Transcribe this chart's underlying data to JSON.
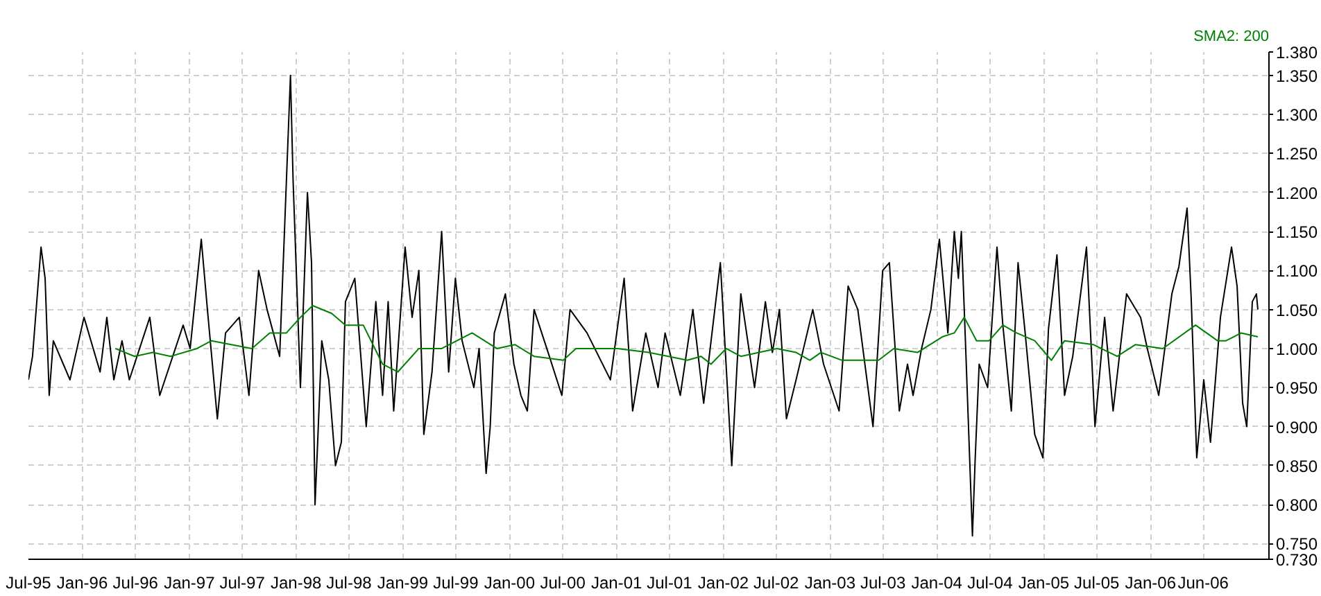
{
  "chart_data": {
    "type": "line",
    "xlim": [
      "1995-07-01",
      "2007-02-10"
    ],
    "xticks": [
      {
        "value": "1995-07-01",
        "label": "Jul-95"
      },
      {
        "value": "1996-01-01",
        "label": "Jan-96"
      },
      {
        "value": "1996-07-01",
        "label": "Jul-96"
      },
      {
        "value": "1997-01-01",
        "label": "Jan-97"
      },
      {
        "value": "1997-07-01",
        "label": "Jul-97"
      },
      {
        "value": "1998-01-01",
        "label": "Jan-98"
      },
      {
        "value": "1998-07-01",
        "label": "Jul-98"
      },
      {
        "value": "1999-01-01",
        "label": "Jan-99"
      },
      {
        "value": "1999-07-01",
        "label": "Jul-99"
      },
      {
        "value": "2000-01-01",
        "label": "Jan-00"
      },
      {
        "value": "2000-07-01",
        "label": "Jul-00"
      },
      {
        "value": "2001-01-01",
        "label": "Jan-01"
      },
      {
        "value": "2001-07-01",
        "label": "Jul-01"
      },
      {
        "value": "2002-01-01",
        "label": "Jan-02"
      },
      {
        "value": "2002-07-01",
        "label": "Jul-02"
      },
      {
        "value": "2003-01-01",
        "label": "Jan-03"
      },
      {
        "value": "2003-07-01",
        "label": "Jul-03"
      },
      {
        "value": "2004-01-01",
        "label": "Jan-04"
      },
      {
        "value": "2004-07-01",
        "label": "Jul-04"
      },
      {
        "value": "2005-01-01",
        "label": "Jan-05"
      },
      {
        "value": "2005-07-01",
        "label": "Jul-05"
      },
      {
        "value": "2006-01-01",
        "label": "Jan-06"
      },
      {
        "value": "2006-06-30",
        "label": "Jun-06"
      }
    ],
    "ylim": [
      0.73,
      1.38
    ],
    "yticks": [
      {
        "value": 0.73,
        "label": "0.730"
      },
      {
        "value": 0.75,
        "label": "0.750"
      },
      {
        "value": 0.8,
        "label": "0.800"
      },
      {
        "value": 0.85,
        "label": "0.850"
      },
      {
        "value": 0.9,
        "label": "0.900"
      },
      {
        "value": 0.95,
        "label": "0.950"
      },
      {
        "value": 1.0,
        "label": "1.000"
      },
      {
        "value": 1.05,
        "label": "1.050"
      },
      {
        "value": 1.1,
        "label": "1.100"
      },
      {
        "value": 1.15,
        "label": "1.150"
      },
      {
        "value": 1.2,
        "label": "1.200"
      },
      {
        "value": 1.25,
        "label": "1.250"
      },
      {
        "value": 1.3,
        "label": "1.300"
      },
      {
        "value": 1.35,
        "label": "1.350"
      },
      {
        "value": 1.38,
        "label": "1.380"
      }
    ],
    "grid": true,
    "line_style": "solid",
    "marker": "none",
    "series": [
      {
        "color": "#000000",
        "x": [
          "1995-07-01",
          "1995-07-15",
          "1995-08-13",
          "1995-08-27",
          "1995-09-10",
          "1995-09-24",
          "1995-11-20",
          "1996-01-07",
          "1996-03-02",
          "1996-03-25",
          "1996-04-18",
          "1996-05-16",
          "1996-06-10",
          "1996-08-19",
          "1996-09-22",
          "1996-12-11",
          "1997-01-04",
          "1997-02-11",
          "1997-03-04",
          "1997-04-07",
          "1997-05-05",
          "1997-06-21",
          "1997-07-24",
          "1997-08-26",
          "1997-09-24",
          "1997-11-06",
          "1997-12-13",
          "1997-12-22",
          "1998-01-16",
          "1998-02-09",
          "1998-02-23",
          "1998-03-07",
          "1998-03-16",
          "1998-03-30",
          "1998-04-23",
          "1998-05-16",
          "1998-06-05",
          "1998-06-19",
          "1998-07-21",
          "1998-08-29",
          "1998-10-01",
          "1998-10-24",
          "1998-11-12",
          "1998-12-01",
          "1999-01-09",
          "1999-02-02",
          "1999-02-25",
          "1999-03-14",
          "1999-04-11",
          "1999-05-14",
          "1999-06-07",
          "1999-06-30",
          "1999-07-23",
          "1999-09-01",
          "1999-09-19",
          "1999-10-13",
          "1999-10-27",
          "1999-11-10",
          "1999-12-18",
          "2000-01-16",
          "2000-02-09",
          "2000-03-02",
          "2000-03-25",
          "2000-05-12",
          "2000-06-28",
          "2000-07-26",
          "2000-09-22",
          "2000-12-11",
          "2001-01-27",
          "2001-02-25",
          "2001-04-11",
          "2001-05-23",
          "2001-06-16",
          "2001-08-07",
          "2001-09-19",
          "2001-10-26",
          "2001-12-22",
          "2002-01-30",
          "2002-03-02",
          "2002-04-18",
          "2002-05-25",
          "2002-06-18",
          "2002-07-12",
          "2002-08-05",
          "2002-09-07",
          "2002-11-03",
          "2002-12-10",
          "2003-02-01",
          "2003-03-04",
          "2003-04-06",
          "2003-05-28",
          "2003-06-30",
          "2003-07-23",
          "2003-08-26",
          "2003-09-23",
          "2003-10-12",
          "2003-11-10",
          "2003-12-12",
          "2004-01-10",
          "2004-02-08",
          "2004-03-01",
          "2004-03-15",
          "2004-03-25",
          "2004-04-08",
          "2004-05-02",
          "2004-05-11",
          "2004-05-25",
          "2004-06-23",
          "2004-07-25",
          "2004-08-14",
          "2004-09-12",
          "2004-10-05",
          "2004-10-28",
          "2004-12-01",
          "2004-12-29",
          "2005-01-17",
          "2005-02-15",
          "2005-03-13",
          "2005-04-10",
          "2005-05-27",
          "2005-06-25",
          "2005-07-28",
          "2005-08-26",
          "2005-10-11",
          "2005-11-28",
          "2005-12-21",
          "2006-01-29",
          "2006-03-15",
          "2006-04-08",
          "2006-05-06",
          "2006-05-20",
          "2006-06-08",
          "2006-07-02",
          "2006-07-25",
          "2006-08-28",
          "2006-10-05",
          "2006-10-24",
          "2006-11-12",
          "2006-11-26",
          "2006-12-15",
          "2006-12-29",
          "2007-01-03"
        ],
        "values": [
          0.96,
          0.99,
          1.13,
          1.09,
          0.94,
          1.01,
          0.96,
          1.04,
          0.97,
          1.04,
          0.96,
          1.01,
          0.96,
          1.04,
          0.94,
          1.03,
          1.0,
          1.14,
          1.05,
          0.91,
          1.02,
          1.04,
          0.94,
          1.1,
          1.05,
          0.99,
          1.35,
          1.215,
          0.95,
          1.2,
          1.11,
          0.8,
          0.88,
          1.01,
          0.96,
          0.85,
          0.88,
          1.06,
          1.09,
          0.9,
          1.06,
          0.94,
          1.06,
          0.92,
          1.13,
          1.04,
          1.1,
          0.89,
          0.97,
          1.15,
          0.97,
          1.09,
          1.01,
          0.95,
          1.0,
          0.84,
          0.9,
          1.02,
          1.07,
          0.98,
          0.94,
          0.92,
          1.05,
          0.995,
          0.94,
          1.05,
          1.02,
          0.96,
          1.09,
          0.92,
          1.02,
          0.95,
          1.02,
          0.94,
          1.05,
          0.93,
          1.11,
          0.85,
          1.07,
          0.95,
          1.06,
          0.995,
          1.05,
          0.91,
          0.96,
          1.05,
          0.98,
          0.92,
          1.08,
          1.05,
          0.9,
          1.1,
          1.11,
          0.92,
          0.98,
          0.94,
          1.0,
          1.05,
          1.14,
          1.02,
          1.15,
          1.09,
          1.15,
          1.01,
          0.76,
          0.855,
          0.98,
          0.95,
          1.13,
          1.03,
          0.92,
          1.11,
          1.025,
          0.89,
          0.86,
          1.025,
          1.12,
          0.94,
          0.99,
          1.13,
          0.9,
          1.04,
          0.92,
          1.07,
          1.04,
          1.0,
          0.94,
          1.07,
          1.105,
          1.18,
          1.065,
          0.86,
          0.96,
          0.88,
          1.04,
          1.13,
          1.08,
          0.93,
          0.9,
          1.06,
          1.07,
          1.05
        ]
      },
      {
        "name": "SMA2: 200",
        "color": "#008000",
        "x": [
          "1996-04-23",
          "1996-06-28",
          "1996-08-29",
          "1996-10-29",
          "1997-01-27",
          "1997-03-18",
          "1997-08-03",
          "1997-10-03",
          "1997-11-29",
          "1998-01-16",
          "1998-02-27",
          "1998-05-03",
          "1998-06-19",
          "1998-08-19",
          "1998-10-24",
          "1998-12-15",
          "1999-02-25",
          "1999-05-14",
          "1999-08-26",
          "1999-11-19",
          "2000-01-20",
          "2000-03-25",
          "2000-07-03",
          "2000-08-15",
          "2001-01-04",
          "2001-04-21",
          "2001-08-31",
          "2001-10-17",
          "2001-11-20",
          "2002-01-11",
          "2002-03-02",
          "2002-07-03",
          "2002-09-07",
          "2002-10-24",
          "2002-12-01",
          "2003-02-11",
          "2003-06-16",
          "2003-08-07",
          "2003-10-27",
          "2004-01-20",
          "2004-03-01",
          "2004-04-04",
          "2004-05-16",
          "2004-06-28",
          "2004-08-14",
          "2004-09-30",
          "2004-12-01",
          "2005-01-27",
          "2005-03-13",
          "2005-06-20",
          "2005-09-09",
          "2005-11-10",
          "2006-02-12",
          "2006-06-04",
          "2006-08-18",
          "2006-09-16",
          "2006-11-07",
          "2007-01-03"
        ],
        "values": [
          1.0,
          0.99,
          0.995,
          0.99,
          1.0,
          1.01,
          1.0,
          1.02,
          1.02,
          1.04,
          1.055,
          1.045,
          1.03,
          1.03,
          0.98,
          0.97,
          1.0,
          1.0,
          1.02,
          1.0,
          1.005,
          0.99,
          0.985,
          1.0,
          1.0,
          0.995,
          0.985,
          0.99,
          0.98,
          1.0,
          0.99,
          1.0,
          0.995,
          0.985,
          0.995,
          0.985,
          0.985,
          1.0,
          0.995,
          1.015,
          1.02,
          1.04,
          1.01,
          1.01,
          1.03,
          1.02,
          1.01,
          0.985,
          1.01,
          1.005,
          0.99,
          1.005,
          1.0,
          1.03,
          1.01,
          1.01,
          1.02,
          1.015
        ]
      }
    ]
  }
}
